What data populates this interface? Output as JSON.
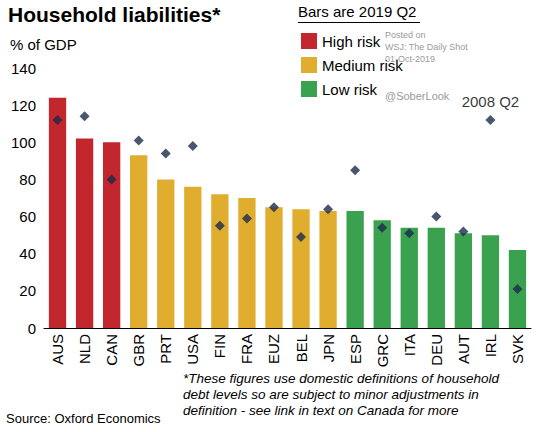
{
  "chart_data": {
    "type": "bar",
    "title": "Household liabilities*",
    "subtitle": "% of GDP",
    "legend_title": "Bars are 2019 Q2",
    "legend": "top-right",
    "categories": [
      "AUS",
      "NLD",
      "CAN",
      "GBR",
      "PRT",
      "USA",
      "FIN",
      "FRA",
      "EUZ",
      "BEL",
      "JPN",
      "ESP",
      "GRC",
      "ITA",
      "DEU",
      "AUT",
      "IRL",
      "SVK"
    ],
    "series": [
      {
        "name": "High risk",
        "type": "bar",
        "color": "#c1272d",
        "values": [
          124,
          102,
          100,
          null,
          null,
          null,
          null,
          null,
          null,
          null,
          null,
          null,
          null,
          null,
          null,
          null,
          null,
          null
        ]
      },
      {
        "name": "Medium risk",
        "type": "bar",
        "color": "#e0ad2f",
        "values": [
          null,
          null,
          null,
          93,
          80,
          76,
          72,
          70,
          65,
          64,
          63,
          null,
          null,
          null,
          null,
          null,
          null,
          null
        ]
      },
      {
        "name": "Low risk",
        "type": "bar",
        "color": "#3aa24f",
        "values": [
          null,
          null,
          null,
          null,
          null,
          null,
          null,
          null,
          null,
          null,
          null,
          63,
          58,
          54,
          54,
          51,
          50,
          42
        ]
      },
      {
        "name": "2008 Q2",
        "type": "scatter",
        "marker": "diamond",
        "color": "#1b2a4e",
        "values": [
          112,
          114,
          80,
          101,
          94,
          98,
          55,
          59,
          65,
          49,
          64,
          85,
          54,
          51,
          60,
          52,
          112,
          21
        ]
      }
    ],
    "annotations": [
      {
        "text": "2008 Q2",
        "x": "IRL"
      }
    ],
    "ylim": [
      0,
      140
    ],
    "yticks": [
      0,
      20,
      40,
      60,
      80,
      100,
      120,
      140
    ],
    "grid": false,
    "watermark": [
      "Posted on",
      "WSJ: The Daily Shot",
      "01-Oct-2019",
      "@SoberLook"
    ],
    "footnote": [
      "*These figures use domestic definitions of household",
      "debt levels so are subject to minor adjustments in",
      "definition - see link in text on Canada for more"
    ],
    "source": "Source: Oxford Economics"
  }
}
